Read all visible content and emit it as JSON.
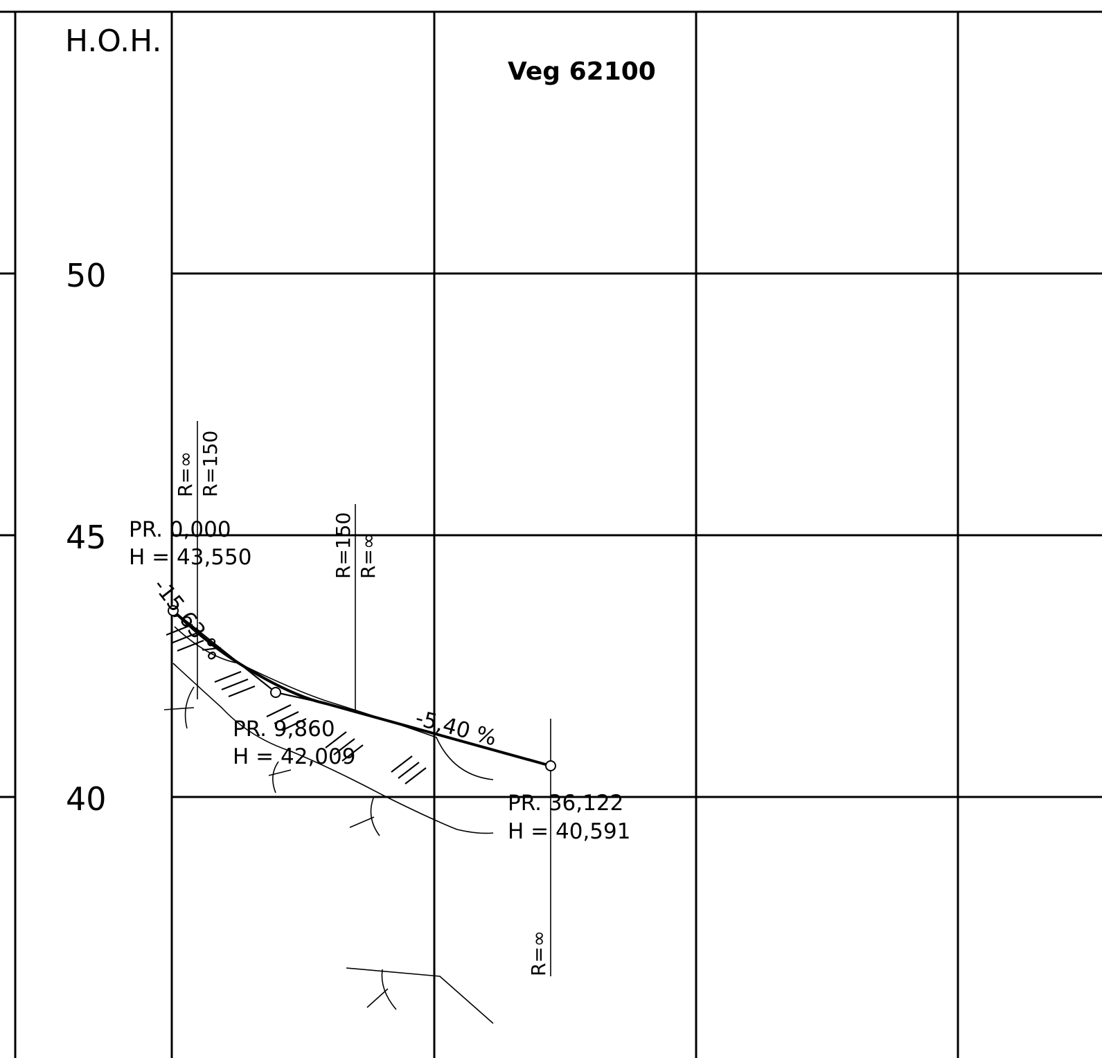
{
  "title": "Veg 62100",
  "elevation_axis": {
    "label": "H.O.H.",
    "ticks": [
      "50",
      "45",
      "40"
    ]
  },
  "grades": [
    "-15,63 %",
    "-5,40 %"
  ],
  "points": [
    {
      "station": "PR. 0,000",
      "height": "H = 43,550"
    },
    {
      "station": "PR. 9,860",
      "height": "H = 42,009"
    },
    {
      "station": "PR. 36,122",
      "height": "H = 40,591"
    }
  ],
  "radii": [
    "R=∞",
    "R=150",
    "R=150",
    "R=∞",
    "R=∞"
  ]
}
